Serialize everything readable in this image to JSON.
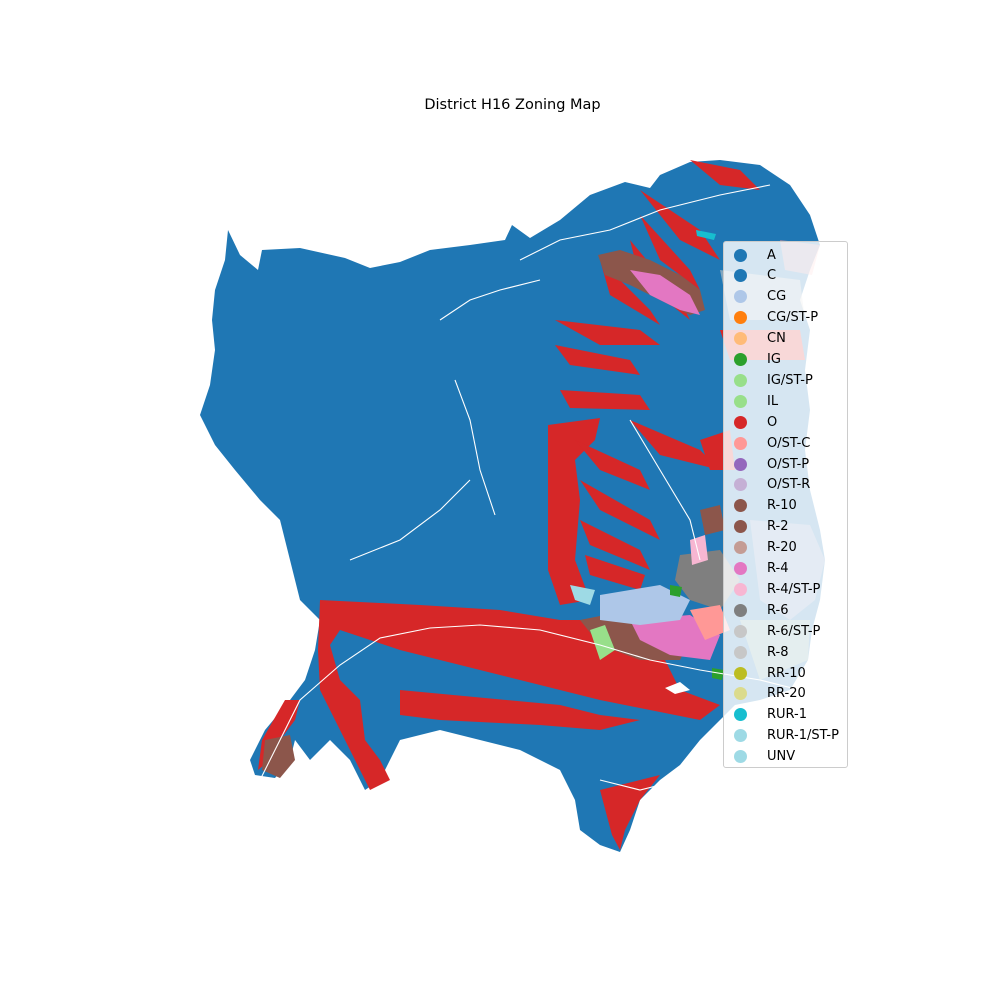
{
  "title": "District H16 Zoning Map",
  "legend": [
    {
      "label": "A",
      "color": "#1f77b4"
    },
    {
      "label": "C",
      "color": "#1f77b4"
    },
    {
      "label": "CG",
      "color": "#aec7e8"
    },
    {
      "label": "CG/ST-P",
      "color": "#ff7f0e"
    },
    {
      "label": "CN",
      "color": "#ffbb78"
    },
    {
      "label": "IG",
      "color": "#2ca02c"
    },
    {
      "label": "IG/ST-P",
      "color": "#98df8a"
    },
    {
      "label": "IL",
      "color": "#98df8a"
    },
    {
      "label": "O",
      "color": "#d62728"
    },
    {
      "label": "O/ST-C",
      "color": "#ff9896"
    },
    {
      "label": "O/ST-P",
      "color": "#9467bd"
    },
    {
      "label": "O/ST-R",
      "color": "#c5b0d5"
    },
    {
      "label": "R-10",
      "color": "#8c564b"
    },
    {
      "label": "R-2",
      "color": "#8c564b"
    },
    {
      "label": "R-20",
      "color": "#c49c94"
    },
    {
      "label": "R-4",
      "color": "#e377c2"
    },
    {
      "label": "R-4/ST-P",
      "color": "#f7b6d2"
    },
    {
      "label": "R-6",
      "color": "#7f7f7f"
    },
    {
      "label": "R-6/ST-P",
      "color": "#c7c7c7"
    },
    {
      "label": "R-8",
      "color": "#c7c7c7"
    },
    {
      "label": "RR-10",
      "color": "#bcbd22"
    },
    {
      "label": "RR-20",
      "color": "#dbdb8d"
    },
    {
      "label": "RUR-1",
      "color": "#17becf"
    },
    {
      "label": "RUR-1/ST-P",
      "color": "#9edae5"
    },
    {
      "label": "UNV",
      "color": "#9edae5"
    }
  ]
}
